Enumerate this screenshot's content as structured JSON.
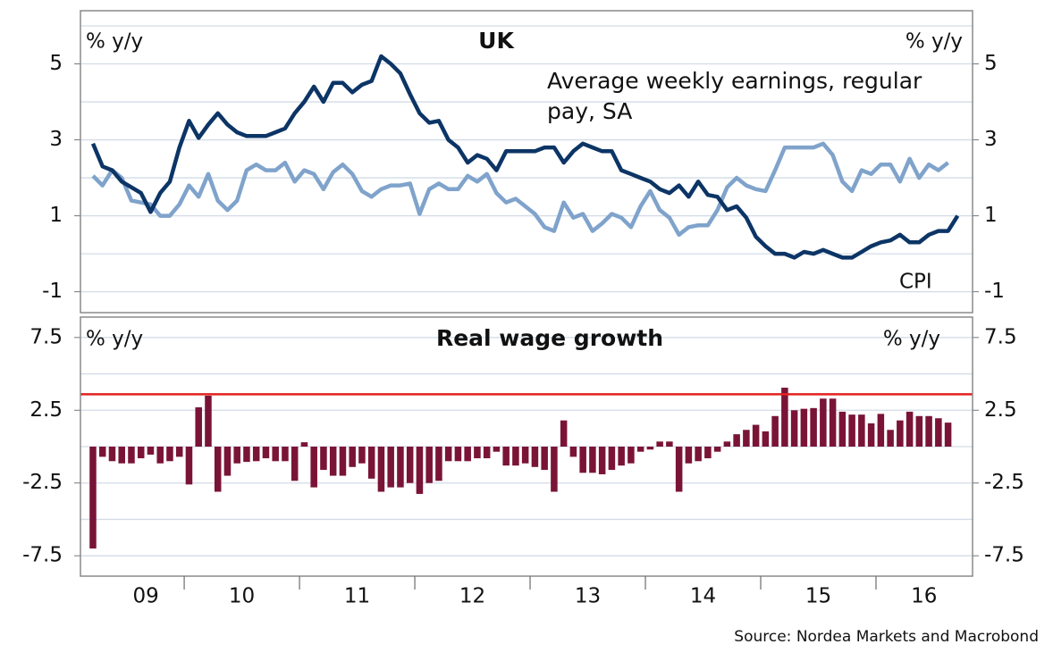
{
  "chart_data": [
    {
      "type": "line",
      "title": "UK",
      "ylabel": "% y/y",
      "y2label": "% y/y",
      "ylim": [
        -1.55,
        6.4
      ],
      "yticks": [
        -1,
        1,
        3,
        5
      ],
      "minor_yticks": [
        0,
        2,
        4,
        6
      ],
      "y2lim": [
        -1.55,
        6.4
      ],
      "y2ticks": [
        -1,
        1,
        3,
        5
      ],
      "grid": true,
      "series": [
        {
          "name": "Average weekly earnings, regular pay, SA",
          "color": "#7fa3cb",
          "values": [
            2.05,
            1.8,
            2.2,
            2.0,
            1.4,
            1.35,
            1.3,
            1.0,
            1.0,
            1.3,
            1.8,
            1.5,
            2.1,
            1.4,
            1.15,
            1.4,
            2.2,
            2.35,
            2.2,
            2.2,
            2.4,
            1.9,
            2.2,
            2.1,
            1.7,
            2.15,
            2.35,
            2.1,
            1.65,
            1.5,
            1.7,
            1.8,
            1.8,
            1.85,
            1.05,
            1.7,
            1.85,
            1.7,
            1.7,
            2.05,
            1.9,
            2.1,
            1.6,
            1.35,
            1.45,
            1.25,
            1.05,
            0.7,
            0.6,
            1.35,
            0.95,
            1.05,
            0.6,
            0.8,
            1.05,
            0.95,
            0.7,
            1.25,
            1.65,
            1.15,
            0.95,
            0.5,
            0.7,
            0.75,
            0.75,
            1.15,
            1.75,
            2.0,
            1.8,
            1.7,
            1.65,
            2.2,
            2.8,
            2.8,
            2.8,
            2.8,
            2.9,
            2.6,
            1.9,
            1.65,
            2.2,
            2.1,
            2.35,
            2.35,
            1.9,
            2.5,
            2.0,
            2.35,
            2.2,
            2.4,
            null
          ]
        },
        {
          "name": "CPI",
          "color": "#0c3566",
          "values": [
            2.9,
            2.3,
            2.2,
            1.9,
            1.75,
            1.6,
            1.1,
            1.6,
            1.9,
            2.8,
            3.5,
            3.05,
            3.4,
            3.7,
            3.4,
            3.2,
            3.1,
            3.1,
            3.1,
            3.2,
            3.3,
            3.7,
            4.0,
            4.4,
            4.0,
            4.5,
            4.5,
            4.25,
            4.45,
            4.55,
            5.2,
            5.0,
            4.75,
            4.2,
            3.7,
            3.45,
            3.5,
            3.0,
            2.8,
            2.4,
            2.6,
            2.5,
            2.2,
            2.7,
            2.7,
            2.7,
            2.7,
            2.8,
            2.8,
            2.4,
            2.7,
            2.9,
            2.8,
            2.7,
            2.7,
            2.2,
            2.1,
            2.0,
            1.9,
            1.7,
            1.6,
            1.8,
            1.5,
            1.9,
            1.55,
            1.5,
            1.15,
            1.25,
            0.95,
            0.45,
            0.2,
            0.0,
            0.0,
            -0.1,
            0.05,
            0.0,
            0.1,
            0.0,
            -0.1,
            -0.1,
            0.05,
            0.2,
            0.3,
            0.35,
            0.5,
            0.3,
            0.3,
            0.5,
            0.6,
            0.6,
            1.0
          ]
        }
      ]
    },
    {
      "type": "bar",
      "title": "Real wage growth",
      "ylabel": "% y/y",
      "y2label": "% y/y",
      "ylim": [
        -8.9,
        8.9
      ],
      "yticks": [
        -7.5,
        -2.5,
        2.5,
        7.5
      ],
      "minor_yticks": [
        -5,
        0,
        5
      ],
      "y2lim": [
        -8.9,
        8.9
      ],
      "y2ticks": [
        -7.5,
        -2.5,
        2.5,
        7.5
      ],
      "grid": true,
      "color": "#7a1436",
      "reference_line": {
        "value": 3.6,
        "color": "#e3211f"
      },
      "categories": [
        null,
        null,
        null,
        null,
        null,
        null,
        "09",
        null,
        null,
        null,
        null,
        null,
        null,
        null,
        null,
        null,
        "10",
        null,
        null,
        null,
        null,
        null,
        null,
        null,
        null,
        null,
        null,
        null,
        "11",
        null,
        null,
        null,
        null,
        null,
        null,
        null,
        null,
        null,
        null,
        null,
        "12",
        null,
        null,
        null,
        null,
        null,
        null,
        null,
        null,
        null,
        null,
        null,
        "13",
        null,
        null,
        null,
        null,
        null,
        null,
        null,
        null,
        null,
        null,
        null,
        "14",
        null,
        null,
        null,
        null,
        null,
        null,
        null,
        null,
        null,
        null,
        null,
        "15",
        null,
        null,
        null,
        null,
        null,
        null,
        null,
        null,
        null,
        null,
        "16",
        null,
        null,
        null
      ],
      "values": [
        -7.0,
        -0.7,
        -1.0,
        -1.15,
        -1.15,
        -0.8,
        -0.55,
        -1.15,
        -1.0,
        -0.7,
        -2.6,
        2.7,
        3.5,
        -3.1,
        -2.0,
        -1.15,
        -1.05,
        -1.0,
        -0.8,
        -1.0,
        -1.0,
        -2.35,
        0.3,
        -2.8,
        -1.6,
        -2.0,
        -2.0,
        -1.4,
        -1.15,
        -2.2,
        -3.1,
        -2.8,
        -2.8,
        -2.5,
        -3.25,
        -2.5,
        -2.35,
        -1.0,
        -1.0,
        -1.0,
        -0.8,
        -0.8,
        -0.35,
        -1.3,
        -1.3,
        -1.15,
        -1.4,
        -1.6,
        -3.1,
        1.8,
        -0.7,
        -1.8,
        -1.8,
        -1.9,
        -1.6,
        -1.3,
        -1.15,
        -0.35,
        -0.2,
        0.35,
        0.35,
        -3.1,
        -1.15,
        -1.0,
        -0.8,
        -0.35,
        0.35,
        0.85,
        1.15,
        1.5,
        1.05,
        2.1,
        4.05,
        2.5,
        2.6,
        2.65,
        3.3,
        3.3,
        2.4,
        2.2,
        2.2,
        1.6,
        2.25,
        1.15,
        1.8,
        2.4,
        2.1,
        2.1,
        1.95,
        1.65,
        null
      ],
      "source": "Source: Nordea Markets and Macrobond"
    }
  ]
}
